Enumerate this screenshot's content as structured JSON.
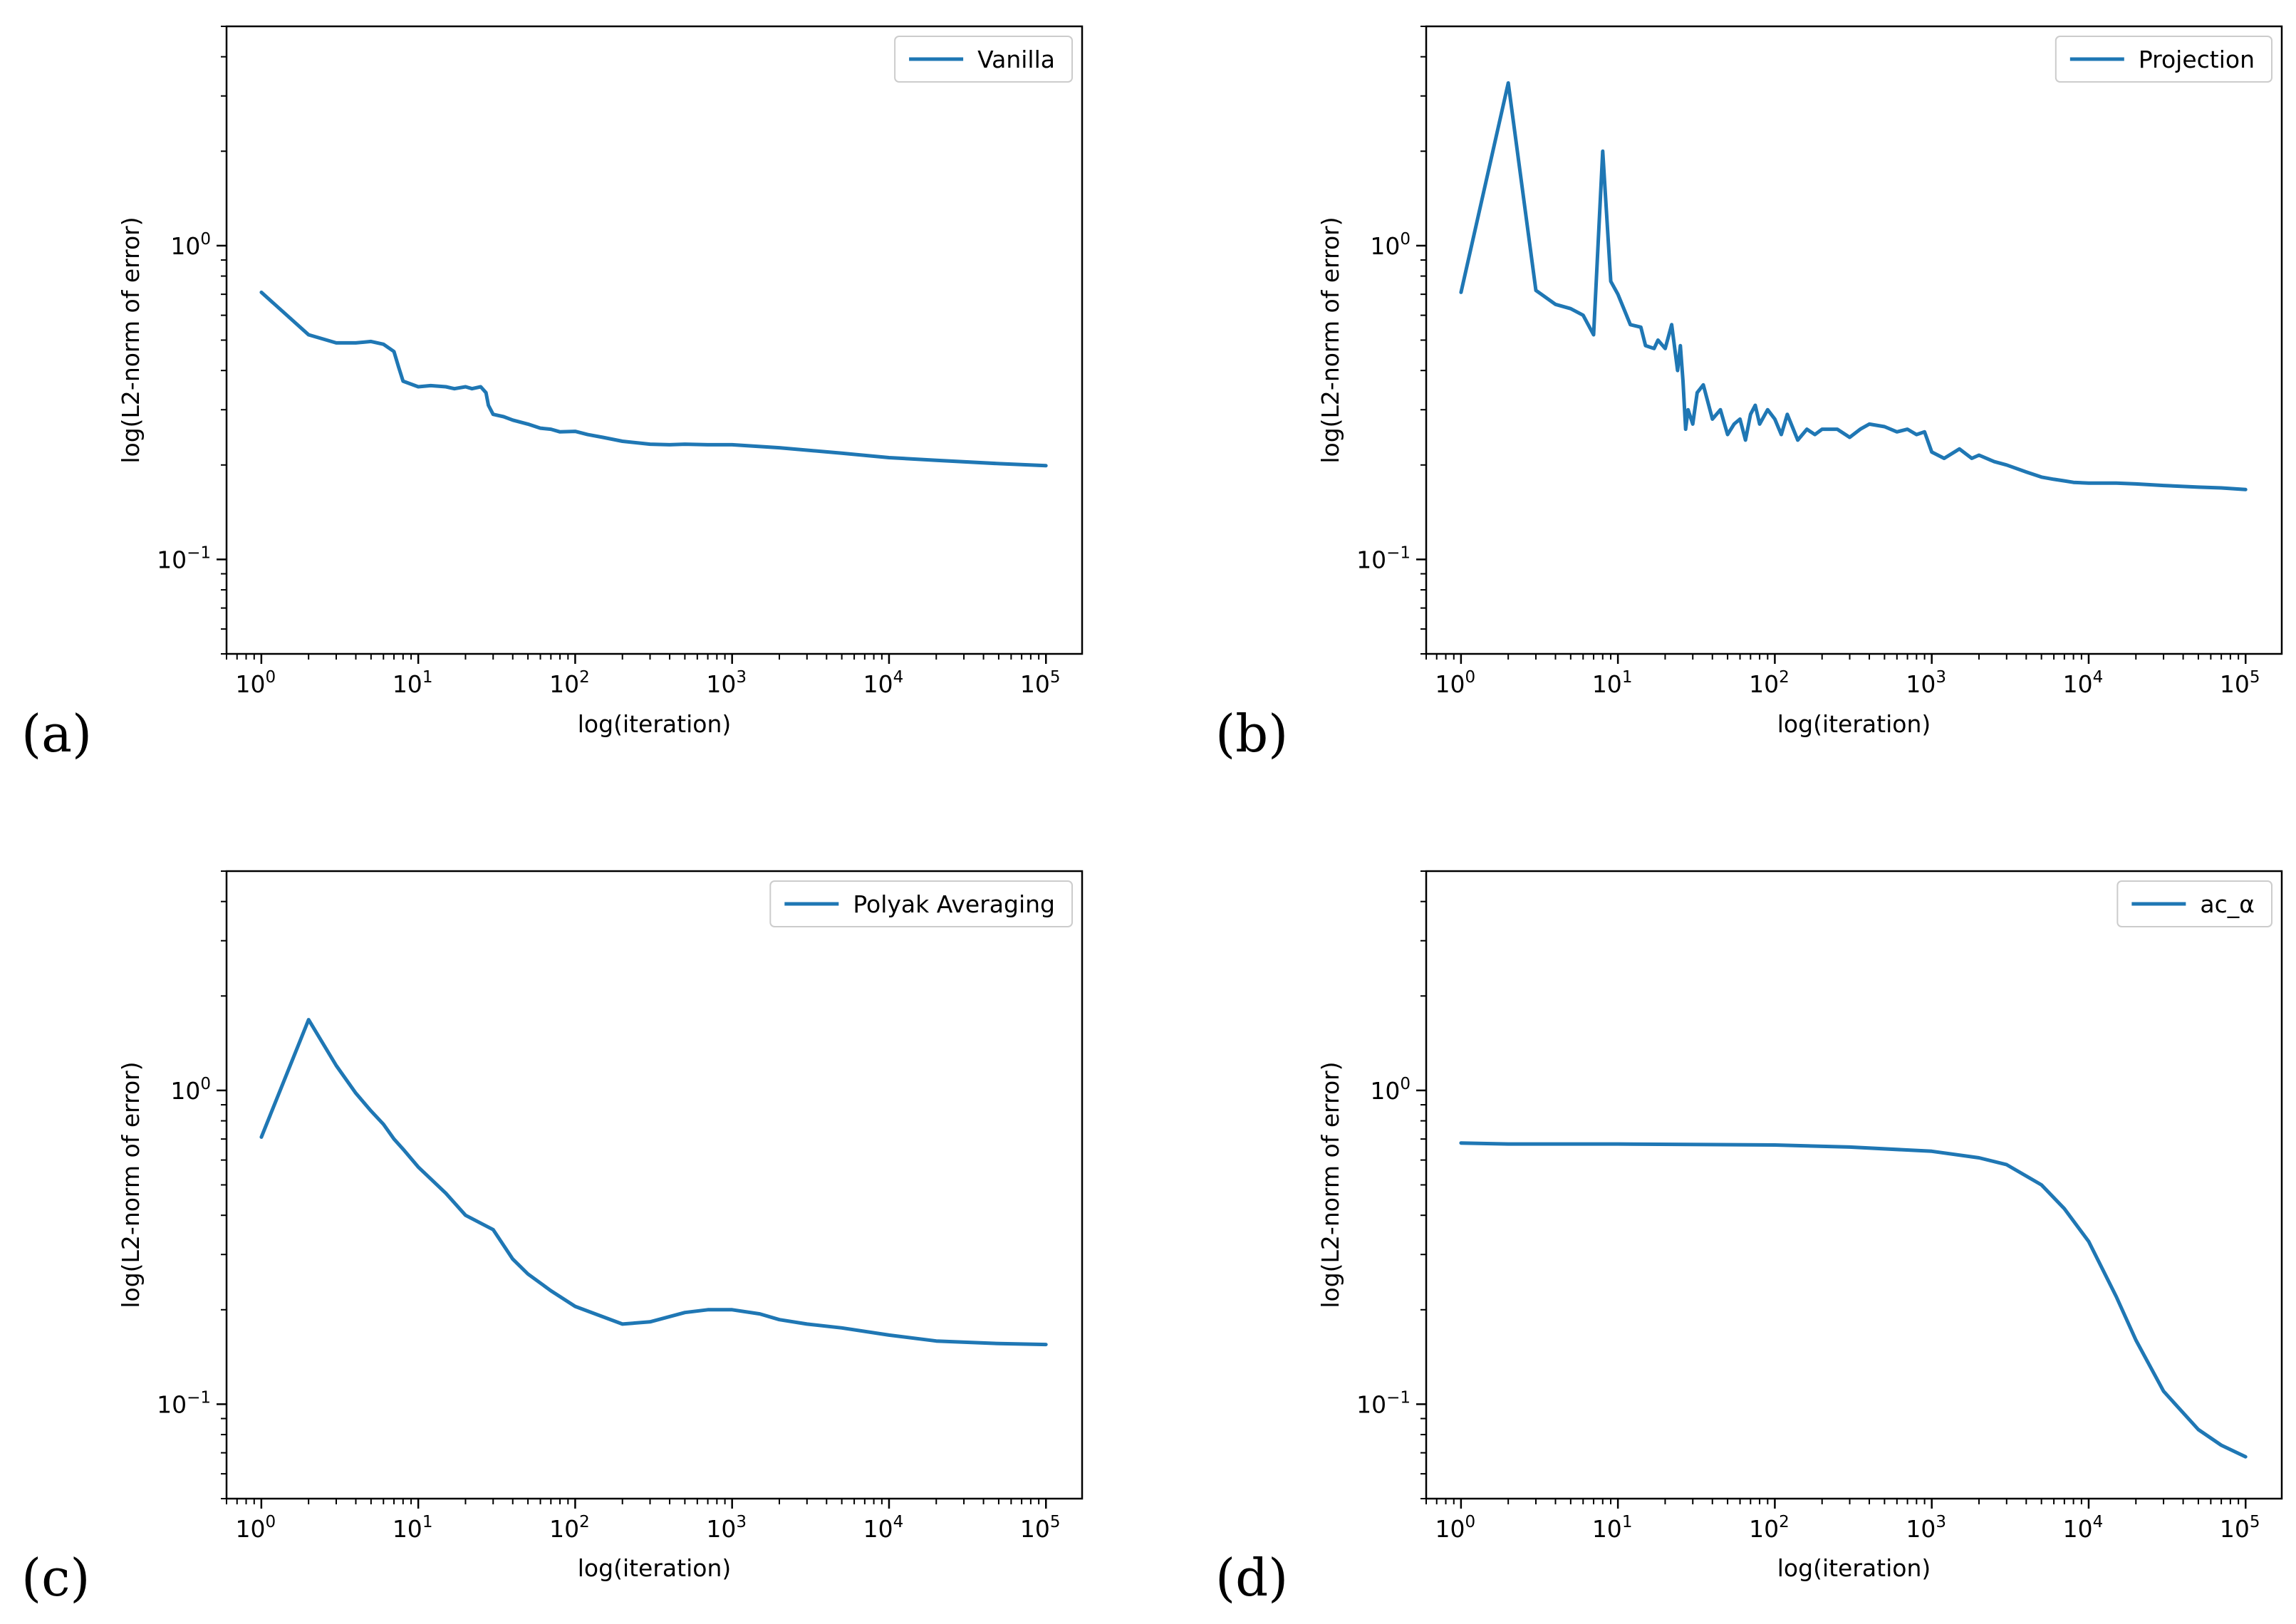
{
  "figure": {
    "line_color": "#1f77b4",
    "panel_tags": [
      "(a)",
      "(b)",
      "(c)",
      "(d)"
    ]
  },
  "chart_data": [
    {
      "type": "line",
      "panel": "(a)",
      "xlabel": "log(iteration)",
      "ylabel": "log(L2-norm of error)",
      "xscale": "log",
      "yscale": "log",
      "xlim": [
        0.6,
        170000
      ],
      "ylim": [
        0.05,
        5
      ],
      "xticks": [
        {
          "base": "10",
          "exp": "0"
        },
        {
          "base": "10",
          "exp": "1"
        },
        {
          "base": "10",
          "exp": "2"
        },
        {
          "base": "10",
          "exp": "3"
        },
        {
          "base": "10",
          "exp": "4"
        },
        {
          "base": "10",
          "exp": "5"
        }
      ],
      "yticks": [
        {
          "base": "10",
          "exp": "0"
        },
        {
          "base": "10",
          "exp": "−1"
        }
      ],
      "legend_position": "upper right",
      "series": [
        {
          "name": "Vanilla",
          "x": [
            1,
            2,
            3,
            4,
            5,
            6,
            7,
            7.5,
            8,
            10,
            12,
            15,
            17,
            20,
            22,
            25,
            27,
            28,
            30,
            35,
            40,
            50,
            60,
            70,
            80,
            100,
            120,
            150,
            200,
            300,
            400,
            500,
            700,
            1000,
            2000,
            5000,
            10000,
            20000,
            50000,
            100000
          ],
          "values": [
            0.71,
            0.52,
            0.49,
            0.49,
            0.495,
            0.485,
            0.46,
            0.41,
            0.37,
            0.355,
            0.358,
            0.355,
            0.35,
            0.355,
            0.35,
            0.355,
            0.34,
            0.31,
            0.29,
            0.285,
            0.278,
            0.27,
            0.262,
            0.26,
            0.255,
            0.256,
            0.25,
            0.245,
            0.238,
            0.233,
            0.232,
            0.233,
            0.232,
            0.232,
            0.227,
            0.218,
            0.211,
            0.207,
            0.202,
            0.199
          ]
        }
      ]
    },
    {
      "type": "line",
      "panel": "(b)",
      "xlabel": "log(iteration)",
      "ylabel": "log(L2-norm of error)",
      "xscale": "log",
      "yscale": "log",
      "xlim": [
        0.6,
        170000
      ],
      "ylim": [
        0.05,
        5
      ],
      "xticks": [
        {
          "base": "10",
          "exp": "0"
        },
        {
          "base": "10",
          "exp": "1"
        },
        {
          "base": "10",
          "exp": "2"
        },
        {
          "base": "10",
          "exp": "3"
        },
        {
          "base": "10",
          "exp": "4"
        },
        {
          "base": "10",
          "exp": "5"
        }
      ],
      "yticks": [
        {
          "base": "10",
          "exp": "0"
        },
        {
          "base": "10",
          "exp": "−1"
        }
      ],
      "legend_position": "upper right",
      "series": [
        {
          "name": "Projection",
          "x": [
            1,
            2,
            3,
            4,
            5,
            6,
            7,
            8,
            9,
            10,
            12,
            14,
            15,
            17,
            18,
            20,
            22,
            24,
            25,
            26,
            27,
            28,
            30,
            32,
            35,
            40,
            45,
            50,
            55,
            60,
            65,
            70,
            75,
            80,
            90,
            100,
            110,
            120,
            140,
            160,
            180,
            200,
            250,
            300,
            350,
            400,
            500,
            600,
            700,
            800,
            900,
            1000,
            1200,
            1500,
            1800,
            2000,
            2500,
            3000,
            4000,
            5000,
            6000,
            7000,
            8000,
            10000,
            15000,
            20000,
            30000,
            50000,
            70000,
            100000
          ],
          "values": [
            0.71,
            3.3,
            0.72,
            0.65,
            0.63,
            0.6,
            0.52,
            2.0,
            0.77,
            0.7,
            0.56,
            0.55,
            0.48,
            0.47,
            0.5,
            0.47,
            0.56,
            0.4,
            0.48,
            0.37,
            0.26,
            0.3,
            0.27,
            0.34,
            0.36,
            0.28,
            0.3,
            0.25,
            0.27,
            0.28,
            0.24,
            0.29,
            0.31,
            0.27,
            0.3,
            0.28,
            0.25,
            0.29,
            0.24,
            0.26,
            0.25,
            0.26,
            0.26,
            0.245,
            0.26,
            0.27,
            0.265,
            0.255,
            0.26,
            0.25,
            0.255,
            0.22,
            0.21,
            0.225,
            0.21,
            0.215,
            0.205,
            0.2,
            0.19,
            0.183,
            0.18,
            0.178,
            0.176,
            0.175,
            0.175,
            0.174,
            0.172,
            0.17,
            0.169,
            0.167
          ]
        }
      ]
    },
    {
      "type": "line",
      "panel": "(c)",
      "xlabel": "log(iteration)",
      "ylabel": "log(L2-norm of error)",
      "xscale": "log",
      "yscale": "log",
      "xlim": [
        0.6,
        170000
      ],
      "ylim": [
        0.05,
        5
      ],
      "xticks": [
        {
          "base": "10",
          "exp": "0"
        },
        {
          "base": "10",
          "exp": "1"
        },
        {
          "base": "10",
          "exp": "2"
        },
        {
          "base": "10",
          "exp": "3"
        },
        {
          "base": "10",
          "exp": "4"
        },
        {
          "base": "10",
          "exp": "5"
        }
      ],
      "yticks": [
        {
          "base": "10",
          "exp": "0"
        },
        {
          "base": "10",
          "exp": "−1"
        }
      ],
      "legend_position": "upper right",
      "series": [
        {
          "name": "Polyak Averaging",
          "x": [
            1,
            2,
            3,
            4,
            5,
            6,
            7,
            8,
            10,
            15,
            20,
            30,
            40,
            50,
            70,
            100,
            150,
            200,
            300,
            500,
            700,
            1000,
            1500,
            2000,
            3000,
            5000,
            10000,
            20000,
            50000,
            100000
          ],
          "values": [
            0.71,
            1.68,
            1.2,
            0.98,
            0.86,
            0.78,
            0.7,
            0.65,
            0.57,
            0.47,
            0.4,
            0.36,
            0.29,
            0.26,
            0.23,
            0.205,
            0.19,
            0.18,
            0.183,
            0.196,
            0.2,
            0.2,
            0.194,
            0.186,
            0.18,
            0.175,
            0.166,
            0.159,
            0.156,
            0.155
          ]
        }
      ]
    },
    {
      "type": "line",
      "panel": "(d)",
      "xlabel": "log(iteration)",
      "ylabel": "log(L2-norm of error)",
      "xscale": "log",
      "yscale": "log",
      "xlim": [
        0.6,
        170000
      ],
      "ylim": [
        0.05,
        5
      ],
      "xticks": [
        {
          "base": "10",
          "exp": "0"
        },
        {
          "base": "10",
          "exp": "1"
        },
        {
          "base": "10",
          "exp": "2"
        },
        {
          "base": "10",
          "exp": "3"
        },
        {
          "base": "10",
          "exp": "4"
        },
        {
          "base": "10",
          "exp": "5"
        }
      ],
      "yticks": [
        {
          "base": "10",
          "exp": "0"
        },
        {
          "base": "10",
          "exp": "−1"
        }
      ],
      "legend_position": "upper right",
      "series": [
        {
          "name": "ac_α",
          "x": [
            1,
            2,
            10,
            100,
            300,
            1000,
            2000,
            3000,
            5000,
            7000,
            10000,
            15000,
            20000,
            30000,
            50000,
            70000,
            100000
          ],
          "values": [
            0.68,
            0.675,
            0.675,
            0.67,
            0.66,
            0.64,
            0.61,
            0.58,
            0.5,
            0.42,
            0.33,
            0.22,
            0.16,
            0.11,
            0.083,
            0.074,
            0.068
          ]
        }
      ]
    }
  ]
}
